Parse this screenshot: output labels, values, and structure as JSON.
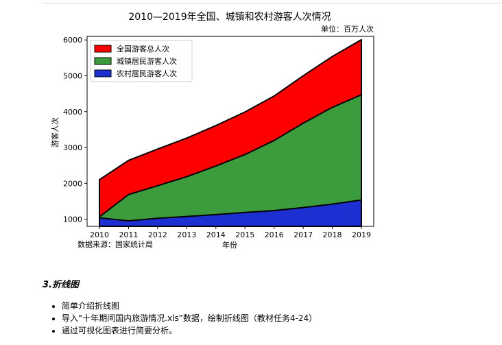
{
  "chart_data": {
    "type": "area",
    "title": "2010—2019年全国、城镇和农村游客人次情况",
    "unit_note": "单位：百万人次",
    "source_note": "数据来源：国家统计局",
    "xlabel": "年份",
    "ylabel": "游客人次",
    "x": [
      2010,
      2011,
      2012,
      2013,
      2014,
      2015,
      2016,
      2017,
      2018,
      2019
    ],
    "xticks": [
      "2010",
      "2011",
      "2012",
      "2013",
      "2014",
      "2015",
      "2016",
      "2017",
      "2018",
      "2019"
    ],
    "yticks": [
      "1000",
      "2000",
      "3000",
      "4000",
      "5000",
      "6000"
    ],
    "ytick_values": [
      1000,
      2000,
      3000,
      4000,
      5000,
      6000
    ],
    "ylim": [
      800,
      6100
    ],
    "legend_position": "upper-left",
    "grid": false,
    "series": [
      {
        "name": "全国游客总人次",
        "color": "#ff0000",
        "values": [
          2103,
          2641,
          2957,
          3262,
          3611,
          3990,
          4435,
          5001,
          5539,
          6006
        ]
      },
      {
        "name": "城镇居民游客人次",
        "color": "#3c9b3c",
        "values": [
          1065,
          1687,
          1933,
          2186,
          2483,
          2802,
          3195,
          3677,
          4119,
          4471
        ]
      },
      {
        "name": "农村居民游客人次",
        "color": "#1c2fd0",
        "values": [
          1038,
          954,
          1024,
          1076,
          1128,
          1188,
          1240,
          1324,
          1420,
          1535
        ]
      }
    ]
  },
  "section": {
    "heading": "3.折线图",
    "bullets": [
      "简单介绍折线图",
      "导入“十年期间国内旅游情况.xls”数据，绘制折线图（教材任务4-24）",
      "通过可视化图表进行简要分析。"
    ]
  }
}
